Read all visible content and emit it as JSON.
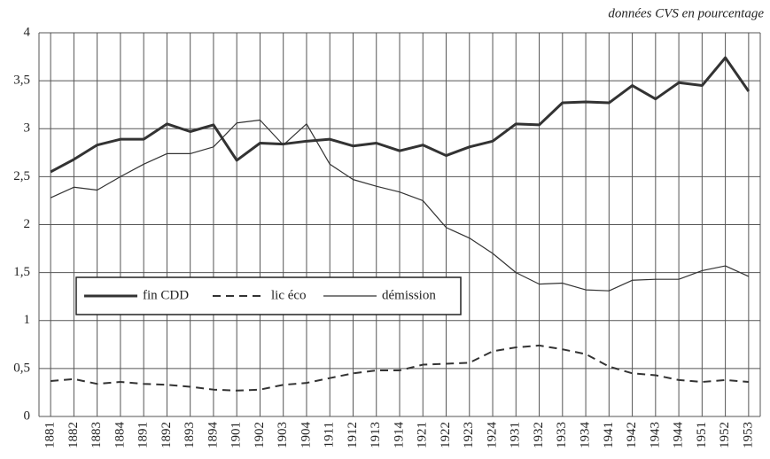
{
  "chart_data": {
    "type": "line",
    "annotation": "données CVS en pourcentage",
    "categories": [
      "1881",
      "1882",
      "1883",
      "1884",
      "1891",
      "1892",
      "1893",
      "1894",
      "1901",
      "1902",
      "1903",
      "1904",
      "1911",
      "1912",
      "1913",
      "1914",
      "1921",
      "1922",
      "1923",
      "1924",
      "1931",
      "1932",
      "1933",
      "1934",
      "1941",
      "1942",
      "1943",
      "1944",
      "1951",
      "1952",
      "1953"
    ],
    "series": [
      {
        "name": "fin CDD",
        "color": "#333333",
        "linestyle": "solid",
        "linewidth": 3,
        "values": [
          2.55,
          2.68,
          2.83,
          2.89,
          2.89,
          3.05,
          2.97,
          3.04,
          2.67,
          2.85,
          2.84,
          2.87,
          2.89,
          2.82,
          2.85,
          2.77,
          2.83,
          2.72,
          2.81,
          2.87,
          3.05,
          3.04,
          3.27,
          3.28,
          3.27,
          3.45,
          3.31,
          3.48,
          3.45,
          3.74,
          3.39
        ]
      },
      {
        "name": "lic éco",
        "color": "#333333",
        "linestyle": "dashed",
        "linewidth": 2,
        "values": [
          0.37,
          0.39,
          0.34,
          0.36,
          0.34,
          0.33,
          0.31,
          0.28,
          0.27,
          0.28,
          0.33,
          0.35,
          0.4,
          0.45,
          0.48,
          0.48,
          0.54,
          0.55,
          0.56,
          0.68,
          0.72,
          0.74,
          0.7,
          0.65,
          0.52,
          0.45,
          0.43,
          0.38,
          0.36,
          0.38,
          0.36
        ]
      },
      {
        "name": "démission",
        "color": "#333333",
        "linestyle": "solid",
        "linewidth": 1.2,
        "values": [
          2.28,
          2.39,
          2.36,
          2.5,
          2.63,
          2.74,
          2.74,
          2.81,
          3.06,
          3.09,
          2.83,
          3.05,
          2.63,
          2.47,
          2.4,
          2.34,
          2.25,
          1.97,
          1.86,
          1.7,
          1.5,
          1.38,
          1.39,
          1.32,
          1.31,
          1.42,
          1.43,
          1.43,
          1.52,
          1.57,
          1.46
        ]
      }
    ],
    "ylim": [
      0,
      4
    ],
    "yticks": [
      0,
      {
        "value": 0.5,
        "label": "0,5"
      },
      1,
      {
        "value": 1.5,
        "label": "1,5"
      },
      2,
      {
        "value": 2.5,
        "label": "2,5"
      },
      3,
      {
        "value": 3.5,
        "label": "3,5"
      },
      4
    ],
    "grid": true
  }
}
